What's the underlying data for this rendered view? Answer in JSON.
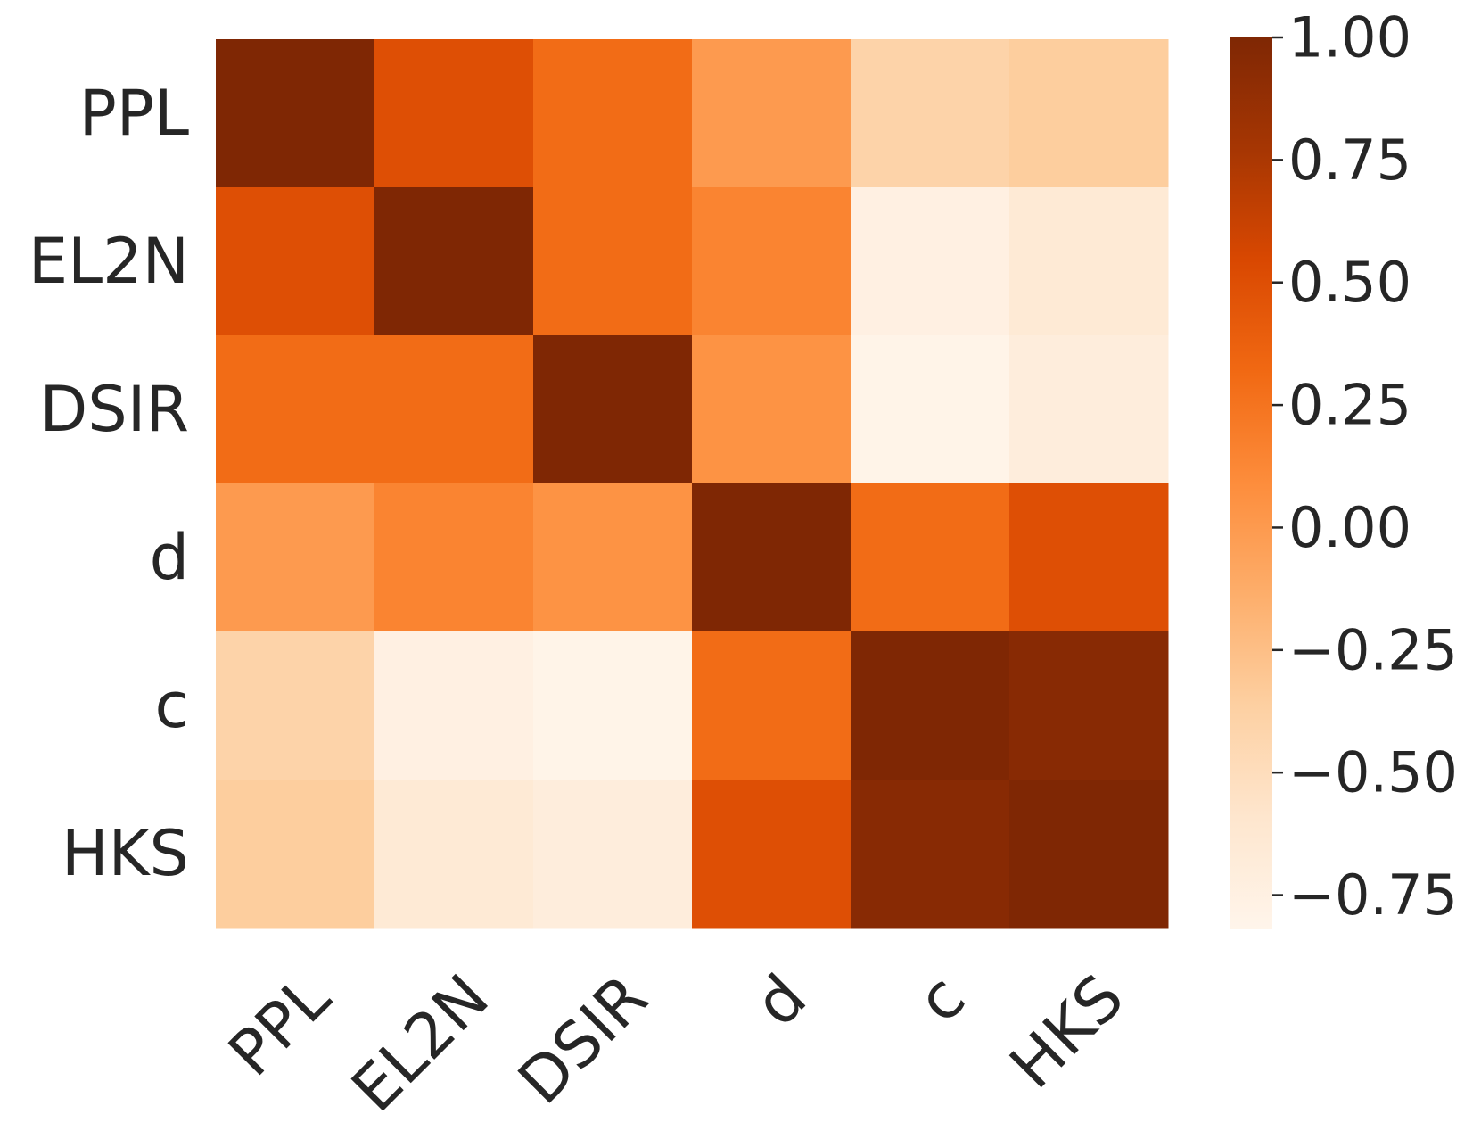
{
  "chart_data": {
    "type": "heatmap",
    "title": "",
    "xlabel": "",
    "ylabel": "",
    "row_labels": [
      "PPL",
      "EL2N",
      "DSIR",
      "d",
      "c",
      "HKS"
    ],
    "col_labels": [
      "PPL",
      "EL2N",
      "DSIR",
      "d",
      "c",
      "HKS"
    ],
    "values": [
      [
        1.0,
        0.5,
        0.3,
        0.0,
        -0.4,
        -0.35
      ],
      [
        0.5,
        1.0,
        0.3,
        0.15,
        -0.75,
        -0.65
      ],
      [
        0.3,
        0.3,
        1.0,
        0.05,
        -0.8,
        -0.7
      ],
      [
        0.0,
        0.15,
        0.05,
        1.0,
        0.3,
        0.5
      ],
      [
        -0.4,
        -0.75,
        -0.8,
        0.3,
        1.0,
        0.95
      ],
      [
        -0.35,
        -0.65,
        -0.7,
        0.5,
        0.95,
        1.0
      ]
    ],
    "vmin": -0.82,
    "vmax": 1.0,
    "colormap": "Oranges",
    "colorbar": {
      "ticks": [
        1.0,
        0.75,
        0.5,
        0.25,
        0.0,
        -0.25,
        -0.5,
        -0.75
      ],
      "tick_labels": [
        "1.00",
        "0.75",
        "0.50",
        "0.25",
        "0.00",
        "−0.25",
        "−0.50",
        "−0.75"
      ]
    },
    "colors": [
      "#fff5eb",
      "#fee6ce",
      "#fdd0a2",
      "#fdae6b",
      "#fd8d3c",
      "#f16913",
      "#d94801",
      "#a63603",
      "#7f2704"
    ]
  }
}
